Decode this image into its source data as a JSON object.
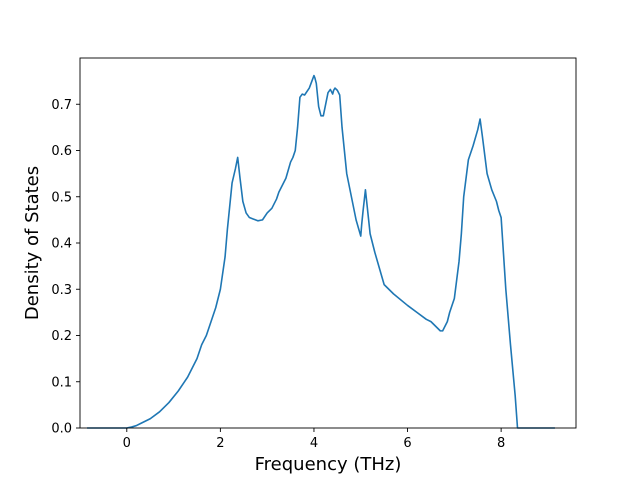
{
  "chart_data": {
    "type": "line",
    "xlabel": "Frequency (THz)",
    "ylabel": "Density of States",
    "xlim": [
      -1.0,
      9.6
    ],
    "ylim": [
      0.0,
      0.8
    ],
    "xticks": [
      0,
      2,
      4,
      6,
      8
    ],
    "yticks": [
      0.0,
      0.1,
      0.2,
      0.3,
      0.4,
      0.5,
      0.6,
      0.7
    ],
    "grid": false,
    "line_color": "#1f77b4",
    "series": [
      {
        "x": [
          -0.85,
          0.0,
          0.1,
          0.2,
          0.3,
          0.5,
          0.7,
          0.9,
          1.1,
          1.3,
          1.5,
          1.6,
          1.7,
          1.8,
          1.9,
          2.0,
          2.1,
          2.15,
          2.25,
          2.32,
          2.37,
          2.42,
          2.48,
          2.55,
          2.62,
          2.7,
          2.75,
          2.8,
          2.9,
          3.0,
          3.1,
          3.2,
          3.25,
          3.3,
          3.4,
          3.5,
          3.55,
          3.6,
          3.65,
          3.7,
          3.75,
          3.8,
          3.9,
          4.0,
          4.02,
          4.05,
          4.1,
          4.15,
          4.2,
          4.3,
          4.35,
          4.4,
          4.42,
          4.45,
          4.5,
          4.55,
          4.6,
          4.65,
          4.7,
          4.8,
          4.9,
          5.0,
          5.02,
          5.05,
          5.1,
          5.2,
          5.3,
          5.5,
          5.7,
          6.0,
          6.2,
          6.4,
          6.5,
          6.6,
          6.7,
          6.75,
          6.8,
          6.85,
          6.9,
          7.0,
          7.05,
          7.1,
          7.15,
          7.2,
          7.3,
          7.4,
          7.5,
          7.55,
          7.6,
          7.7,
          7.8,
          7.9,
          7.95,
          8.0,
          8.1,
          8.2,
          8.3,
          8.35,
          8.5,
          9.15
        ],
        "y": [
          0.0,
          0.0,
          0.002,
          0.005,
          0.01,
          0.02,
          0.035,
          0.055,
          0.08,
          0.11,
          0.15,
          0.18,
          0.2,
          0.23,
          0.26,
          0.3,
          0.37,
          0.43,
          0.53,
          0.56,
          0.585,
          0.54,
          0.49,
          0.465,
          0.455,
          0.452,
          0.45,
          0.448,
          0.45,
          0.465,
          0.475,
          0.495,
          0.51,
          0.52,
          0.54,
          0.575,
          0.585,
          0.6,
          0.65,
          0.715,
          0.722,
          0.72,
          0.735,
          0.762,
          0.757,
          0.745,
          0.695,
          0.675,
          0.675,
          0.725,
          0.732,
          0.722,
          0.73,
          0.735,
          0.73,
          0.72,
          0.65,
          0.6,
          0.55,
          0.5,
          0.45,
          0.415,
          0.44,
          0.47,
          0.515,
          0.42,
          0.38,
          0.31,
          0.29,
          0.265,
          0.25,
          0.235,
          0.23,
          0.22,
          0.21,
          0.21,
          0.22,
          0.23,
          0.25,
          0.28,
          0.32,
          0.36,
          0.42,
          0.5,
          0.58,
          0.61,
          0.645,
          0.668,
          0.63,
          0.55,
          0.515,
          0.49,
          0.47,
          0.455,
          0.3,
          0.18,
          0.07,
          0.0,
          0.0,
          0.0
        ]
      }
    ]
  }
}
